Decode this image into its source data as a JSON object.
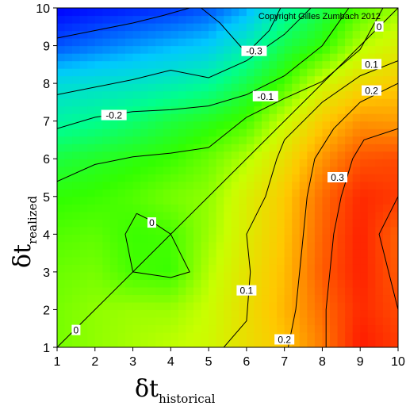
{
  "chart_data": {
    "type": "heatmap",
    "title": "",
    "copyright": "Copyright Gilles Zumbach 2012",
    "xlabel": {
      "symbol": "δt",
      "subscript": "historical"
    },
    "ylabel": {
      "symbol": "δt",
      "subscript": "realized"
    },
    "xlim": [
      1,
      10
    ],
    "ylim": [
      1,
      10
    ],
    "x_ticks": [
      1,
      2,
      3,
      4,
      5,
      6,
      7,
      8,
      9,
      10
    ],
    "y_ticks": [
      1,
      2,
      3,
      4,
      5,
      6,
      7,
      8,
      9,
      10
    ],
    "color_scale": {
      "min": -0.4,
      "max": 0.45,
      "colors": [
        "#0000ff",
        "#00c8ff",
        "#00ff8c",
        "#32ff00",
        "#c8ff00",
        "#ffc800",
        "#ff6400",
        "#ff0000"
      ]
    },
    "grid_x": [
      1,
      2,
      3,
      4,
      5,
      6,
      7,
      8,
      9,
      10
    ],
    "grid_y": [
      1,
      2,
      3,
      4,
      5,
      6,
      7,
      8,
      9,
      10
    ],
    "z": [
      [
        0.02,
        0.04,
        0.06,
        0.08,
        0.1,
        0.16,
        0.21,
        0.3,
        0.42,
        0.38
      ],
      [
        0.02,
        0.04,
        0.05,
        0.05,
        0.09,
        0.16,
        0.23,
        0.32,
        0.4,
        0.36
      ],
      [
        0.01,
        0.02,
        -0.02,
        -0.03,
        0.07,
        0.15,
        0.22,
        0.34,
        0.41,
        0.34
      ],
      [
        -0.01,
        0.0,
        -0.03,
        -0.02,
        0.05,
        0.13,
        0.21,
        0.33,
        0.41,
        0.33
      ],
      [
        -0.04,
        -0.03,
        -0.01,
        0.02,
        0.04,
        0.12,
        0.2,
        0.32,
        0.4,
        0.38
      ],
      [
        -0.09,
        -0.07,
        -0.05,
        -0.03,
        0.01,
        0.07,
        0.16,
        0.27,
        0.35,
        0.36
      ],
      [
        -0.18,
        -0.16,
        -0.13,
        -0.09,
        -0.06,
        -0.02,
        0.09,
        0.2,
        0.27,
        0.26
      ],
      [
        -0.24,
        -0.23,
        -0.22,
        -0.2,
        -0.17,
        -0.1,
        -0.02,
        0.1,
        0.17,
        0.2
      ],
      [
        -0.35,
        -0.33,
        -0.31,
        -0.29,
        -0.27,
        -0.2,
        -0.1,
        -0.04,
        0.07,
        0.12
      ],
      [
        -0.4,
        -0.39,
        -0.38,
        -0.37,
        -0.35,
        -0.3,
        -0.18,
        -0.1,
        -0.01,
        0.05
      ]
    ],
    "contour_lines": [
      {
        "label": "-0.3",
        "points": [
          [
            1.0,
            9.2
          ],
          [
            2.0,
            9.4
          ],
          [
            3.0,
            9.6
          ],
          [
            3.8,
            9.8
          ],
          [
            4.5,
            10.0
          ]
        ]
      },
      {
        "label": "-0.3",
        "points": [
          [
            4.8,
            10.0
          ],
          [
            5.3,
            9.6
          ],
          [
            6.0,
            8.8
          ],
          [
            6.6,
            9.4
          ],
          [
            6.9,
            10.0
          ]
        ]
      },
      {
        "label": "-0.2",
        "points": [
          [
            1.0,
            7.7
          ],
          [
            2.0,
            7.9
          ],
          [
            3.0,
            8.1
          ],
          [
            4.0,
            8.35
          ],
          [
            5.0,
            8.15
          ],
          [
            6.0,
            8.6
          ],
          [
            7.0,
            9.3
          ],
          [
            7.7,
            10.0
          ]
        ]
      },
      {
        "label": "-0.1",
        "points": [
          [
            1.0,
            6.8
          ],
          [
            2.0,
            7.1
          ],
          [
            3.0,
            7.25
          ],
          [
            4.0,
            7.3
          ],
          [
            5.0,
            7.4
          ],
          [
            6.0,
            7.7
          ],
          [
            7.0,
            8.2
          ],
          [
            8.0,
            9.0
          ],
          [
            8.7,
            10.0
          ]
        ]
      },
      {
        "label": "0",
        "points": [
          [
            1.0,
            5.4
          ],
          [
            2.0,
            5.85
          ],
          [
            3.0,
            6.05
          ],
          [
            4.0,
            6.15
          ],
          [
            5.0,
            6.3
          ],
          [
            6.0,
            7.1
          ],
          [
            7.0,
            7.6
          ],
          [
            8.0,
            8.05
          ],
          [
            9.0,
            8.9
          ],
          [
            9.6,
            10.0
          ]
        ]
      },
      {
        "label": "0",
        "points": [
          [
            3.1,
            4.55
          ],
          [
            2.8,
            4.0
          ],
          [
            3.0,
            3.0
          ],
          [
            4.0,
            2.85
          ],
          [
            4.5,
            3.0
          ],
          [
            4.0,
            4.0
          ],
          [
            3.4,
            4.4
          ],
          [
            3.1,
            4.55
          ]
        ]
      },
      {
        "label": "0.1",
        "points": [
          [
            5.4,
            1.0
          ],
          [
            6.0,
            1.7
          ],
          [
            6.1,
            3.0
          ],
          [
            6.0,
            4.0
          ],
          [
            6.5,
            5.0
          ],
          [
            6.8,
            6.0
          ],
          [
            7.0,
            6.5
          ],
          [
            8.0,
            7.5
          ],
          [
            9.0,
            8.2
          ],
          [
            10.0,
            8.6
          ]
        ]
      },
      {
        "label": "0.2",
        "points": [
          [
            7.1,
            1.0
          ],
          [
            7.3,
            2.0
          ],
          [
            7.4,
            3.0
          ],
          [
            7.5,
            4.0
          ],
          [
            7.6,
            5.0
          ],
          [
            7.8,
            6.0
          ],
          [
            8.3,
            6.8
          ],
          [
            9.0,
            7.5
          ],
          [
            10.0,
            8.0
          ]
        ]
      },
      {
        "label": "0.3",
        "points": [
          [
            8.1,
            1.0
          ],
          [
            8.1,
            2.0
          ],
          [
            8.2,
            3.0
          ],
          [
            8.3,
            4.0
          ],
          [
            8.5,
            5.0
          ],
          [
            8.8,
            6.0
          ],
          [
            9.1,
            6.5
          ],
          [
            10.0,
            6.8
          ]
        ]
      },
      {
        "label": "0.3",
        "points": [
          [
            10.0,
            5.0
          ],
          [
            9.5,
            4.0
          ],
          [
            10.0,
            2.0
          ]
        ]
      }
    ],
    "contour_label_positions": [
      {
        "label": "-0.3",
        "x": 6.2,
        "y": 8.85
      },
      {
        "label": "-0.2",
        "x": 2.5,
        "y": 7.15
      },
      {
        "label": "-0.1",
        "x": 6.5,
        "y": 7.65
      },
      {
        "label": "0",
        "x": 9.5,
        "y": 9.5
      },
      {
        "label": "0.1",
        "x": 9.3,
        "y": 8.5
      },
      {
        "label": "0.2",
        "x": 9.3,
        "y": 7.8
      },
      {
        "label": "0.3",
        "x": 8.4,
        "y": 5.5
      },
      {
        "label": "0",
        "x": 3.5,
        "y": 4.3
      },
      {
        "label": "0",
        "x": 1.5,
        "y": 1.45
      },
      {
        "label": "0.1",
        "x": 6.0,
        "y": 2.5
      },
      {
        "label": "0.2",
        "x": 7.0,
        "y": 1.2
      }
    ],
    "diagonal": {
      "from": [
        1,
        1
      ],
      "to": [
        10,
        10
      ]
    },
    "grid": false
  }
}
